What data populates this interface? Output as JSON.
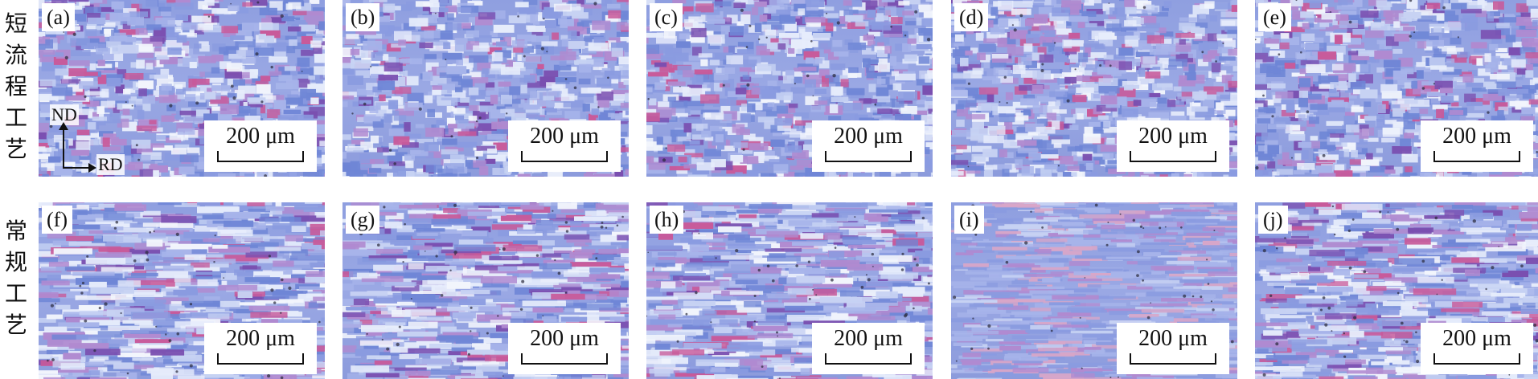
{
  "rows": [
    {
      "label_chars": [
        "短",
        "流",
        "程",
        "工",
        "艺"
      ]
    },
    {
      "label_chars": [
        "常",
        "规",
        "工",
        "艺"
      ]
    }
  ],
  "panels": [
    {
      "label": "(a)",
      "scale_text": "200 μm",
      "style": "coarse"
    },
    {
      "label": "(b)",
      "scale_text": "200 μm",
      "style": "coarse"
    },
    {
      "label": "(c)",
      "scale_text": "200 μm",
      "style": "coarse"
    },
    {
      "label": "(d)",
      "scale_text": "200 μm",
      "style": "coarse"
    },
    {
      "label": "(e)",
      "scale_text": "200 μm",
      "style": "coarse"
    },
    {
      "label": "(f)",
      "scale_text": "200 μm",
      "style": "elongated"
    },
    {
      "label": "(g)",
      "scale_text": "200 μm",
      "style": "elongated"
    },
    {
      "label": "(h)",
      "scale_text": "200 μm",
      "style": "elongated"
    },
    {
      "label": "(i)",
      "scale_text": "200 μm",
      "style": "fine"
    },
    {
      "label": "(j)",
      "scale_text": "200 μm",
      "style": "elongated"
    }
  ],
  "axes": {
    "nd": "ND",
    "rd": "RD"
  },
  "palette": [
    "#6f86d6",
    "#8a9be0",
    "#a7b4ea",
    "#c7d2f3",
    "#e6ecfb",
    "#b08ad0",
    "#c85a9a",
    "#7a4fb0",
    "#5a9bd6",
    "#f2f5fc",
    "#d8a6c8",
    "#9b7fd0"
  ]
}
